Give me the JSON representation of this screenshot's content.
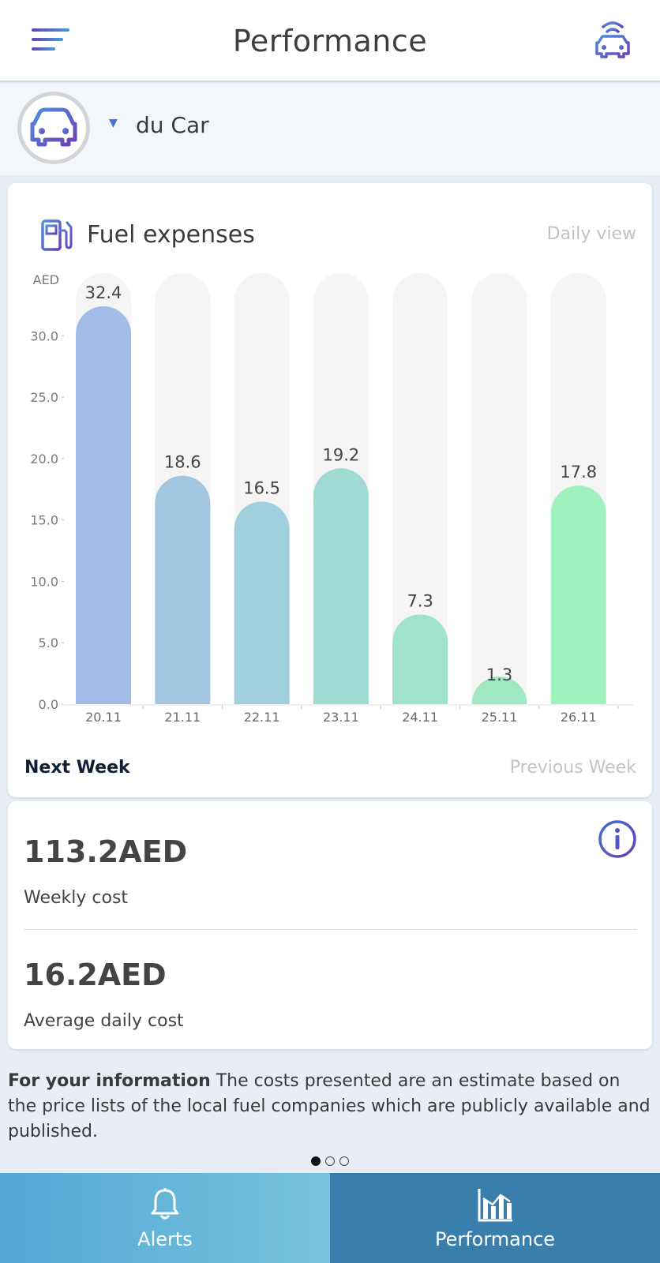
{
  "header": {
    "title": "Performance",
    "menu_icon": "hamburger-menu-icon",
    "connected_car_icon": "connected-car-icon"
  },
  "vehicle": {
    "name": "du Car",
    "avatar_icon": "car-icon",
    "dropdown_icon": "caret-down-icon"
  },
  "fuel_card": {
    "title": "Fuel expenses",
    "icon": "fuel-pump-icon",
    "view_label": "Daily view",
    "next_week_label": "Next Week",
    "previous_week_label": "Previous Week"
  },
  "chart_data": {
    "type": "bar",
    "ylabel": "AED",
    "ylim": [
      0,
      32.4
    ],
    "yticks": [
      "0.0",
      "5.0",
      "10.0",
      "15.0",
      "20.0",
      "25.0",
      "30.0"
    ],
    "categories": [
      "20.11",
      "21.11",
      "22.11",
      "23.11",
      "24.11",
      "25.11",
      "26.11"
    ],
    "values": [
      32.4,
      18.6,
      16.5,
      19.2,
      7.3,
      1.3,
      17.8
    ],
    "value_labels": [
      "32.4",
      "18.6",
      "16.5",
      "19.2",
      "7.3",
      "1.3",
      "17.8"
    ],
    "bar_colors": [
      "#a3bbe6",
      "#a2c6e0",
      "#a0cfdd",
      "#9fdbd3",
      "#9fe3ca",
      "#a0e8c3",
      "#9ff2bd"
    ],
    "track_color": "#f5f5f5",
    "grid": false
  },
  "costs": {
    "weekly_value": "113.2AED",
    "weekly_label": "Weekly cost",
    "average_value": "16.2AED",
    "average_label": "Average daily cost",
    "info_icon": "info-icon"
  },
  "note": {
    "heading": "For your information",
    "text": " The costs presented are an estimate based on the price lists of the local fuel companies which are publicly available and published."
  },
  "pager": {
    "count": 3,
    "active": 0
  },
  "bottom_nav": [
    {
      "label": "Alerts",
      "icon": "bell-icon"
    },
    {
      "label": "Performance",
      "icon": "bar-chart-icon"
    }
  ],
  "colors": {
    "accent_purple": "#6a3fb5",
    "accent_blue": "#3f8fd6",
    "nav_alerts": "#66b6da",
    "nav_performance": "#3a7fab"
  }
}
